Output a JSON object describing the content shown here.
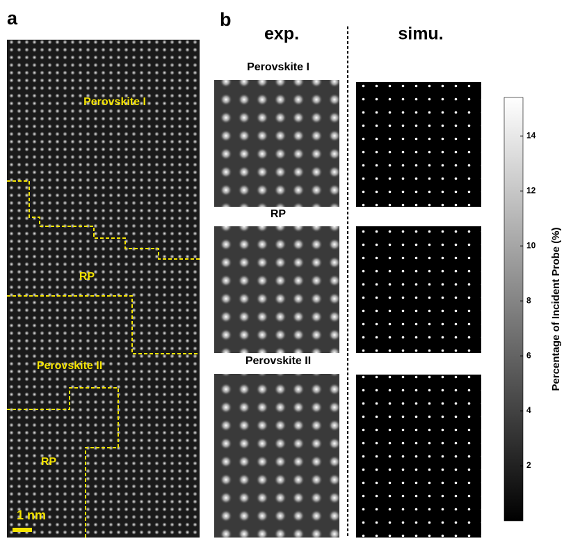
{
  "panels": {
    "a": "a",
    "b": "b"
  },
  "panel_a": {
    "regions": [
      "Perovskite I",
      "RP",
      "Perovskite II",
      "RP"
    ],
    "scale_bar": "1 nm"
  },
  "panel_b": {
    "columns": [
      "exp.",
      "simu."
    ],
    "rows": [
      "Perovskite I",
      "RP",
      "Perovskite II"
    ]
  },
  "colorbar": {
    "label": "Percentage of Incident Probe (%)",
    "lim": [
      0,
      15.4
    ],
    "ticks": [
      2,
      4,
      6,
      8,
      10,
      12,
      14
    ]
  }
}
